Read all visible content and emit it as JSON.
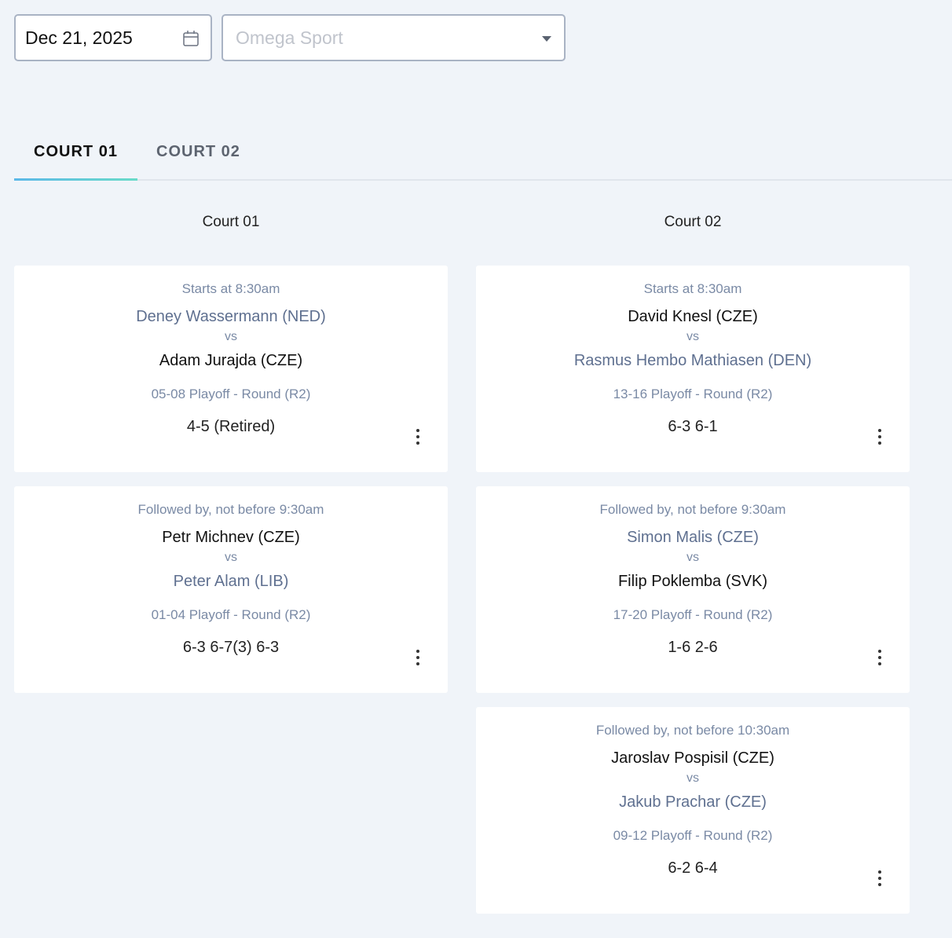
{
  "filters": {
    "date": "Dec 21, 2025",
    "venue_placeholder": "Omega Sport"
  },
  "tabs": [
    {
      "label": "COURT 01",
      "active": true
    },
    {
      "label": "COURT 02",
      "active": false
    }
  ],
  "courts": [
    {
      "title": "Court 01",
      "matches": [
        {
          "time": "Starts at 8:30am",
          "player1": "Deney Wassermann (NED)",
          "player2": "Adam Jurajda (CZE)",
          "winner": 2,
          "vs": "vs",
          "round": "05-08 Playoff - Round (R2)",
          "score": "4-5 (Retired)"
        },
        {
          "time": "Followed by, not before 9:30am",
          "player1": "Petr Michnev (CZE)",
          "player2": "Peter Alam (LIB)",
          "winner": 1,
          "vs": "vs",
          "round": "01-04 Playoff - Round (R2)",
          "score": "6-3 6-7(3) 6-3"
        }
      ]
    },
    {
      "title": "Court 02",
      "matches": [
        {
          "time": "Starts at 8:30am",
          "player1": "David Knesl (CZE)",
          "player2": "Rasmus Hembo Mathiasen (DEN)",
          "winner": 1,
          "vs": "vs",
          "round": "13-16 Playoff - Round (R2)",
          "score": "6-3 6-1"
        },
        {
          "time": "Followed by, not before 9:30am",
          "player1": "Simon Malis (CZE)",
          "player2": "Filip Poklemba (SVK)",
          "winner": 2,
          "vs": "vs",
          "round": "17-20 Playoff - Round (R2)",
          "score": "1-6 2-6"
        },
        {
          "time": "Followed by, not before 10:30am",
          "player1": "Jaroslav Pospisil (CZE)",
          "player2": "Jakub Prachar (CZE)",
          "winner": 1,
          "vs": "vs",
          "round": "09-12 Playoff - Round (R2)",
          "score": "6-2 6-4"
        }
      ]
    }
  ],
  "colors": {
    "winner": "#111111",
    "loser": "#5f7090",
    "tab_underline": "#5cb8e8"
  }
}
